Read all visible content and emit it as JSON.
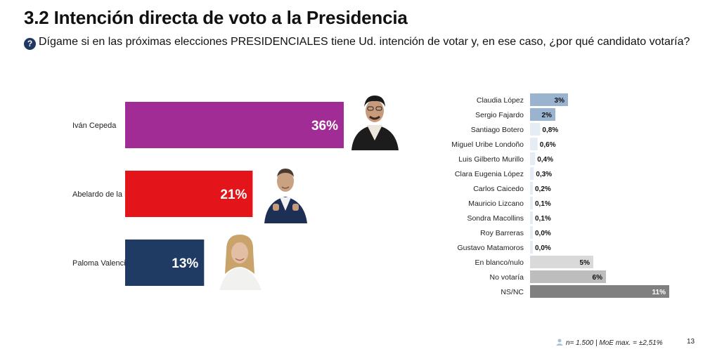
{
  "header": {
    "title": "3.2 Intención directa de voto a la Presidencia",
    "question": "Dígame si en las próximas elecciones PRESIDENCIALES tiene Ud. intención de votar y, en ese caso, ¿por qué candidato votaría?"
  },
  "footer": {
    "sample": "n= 1.500",
    "moe": "| MoE max. = ±2,51%",
    "page": "13"
  },
  "chart_data": [
    {
      "type": "bar",
      "orientation": "horizontal",
      "categories": [
        "Iván Cepeda",
        "Abelardo de la Espriella",
        "Paloma Valencia"
      ],
      "values": [
        36,
        21,
        13
      ],
      "value_labels": [
        "36%",
        "21%",
        "13%"
      ],
      "colors": [
        "#a22c95",
        "#e3151a",
        "#1f3a63"
      ],
      "title": "",
      "xlabel": "",
      "ylabel": ""
    },
    {
      "type": "bar",
      "orientation": "horizontal",
      "categories": [
        "Claudia López",
        "Sergio Fajardo",
        "Santiago Botero",
        "Miguel Uribe Londoño",
        "Luis Gilberto Murillo",
        "Clara Eugenia López",
        "Carlos Caicedo",
        "Mauricio Lizcano",
        "Sondra Macollins",
        "Roy Barreras",
        "Gustavo Matamoros",
        "En blanco/nulo",
        "No votaría",
        "NS/NC"
      ],
      "values": [
        3,
        2,
        0.8,
        0.6,
        0.4,
        0.3,
        0.2,
        0.1,
        0.1,
        0.0,
        0.0,
        5,
        6,
        11
      ],
      "value_labels": [
        "3%",
        "2%",
        "0,8%",
        "0,6%",
        "0,4%",
        "0,3%",
        "0,2%",
        "0,1%",
        "0,1%",
        "0,0%",
        "0,0%",
        "5%",
        "6%",
        "11%"
      ],
      "colors": [
        "#9ab4d0",
        "#9ab4d0",
        "#e6ecf4",
        "#e6ecf4",
        "#e6ecf4",
        "#e6ecf4",
        "#e6ecf4",
        "#e6ecf4",
        "#e6ecf4",
        "#e6ecf4",
        "#e6ecf4",
        "#d9d9d9",
        "#bdbdbd",
        "#808080"
      ],
      "value_text_colors": [
        "#111111",
        "#111111",
        "#111111",
        "#111111",
        "#111111",
        "#111111",
        "#111111",
        "#111111",
        "#111111",
        "#111111",
        "#111111",
        "#111111",
        "#111111",
        "#ffffff"
      ],
      "title": "",
      "xlabel": "",
      "ylabel": ""
    }
  ]
}
